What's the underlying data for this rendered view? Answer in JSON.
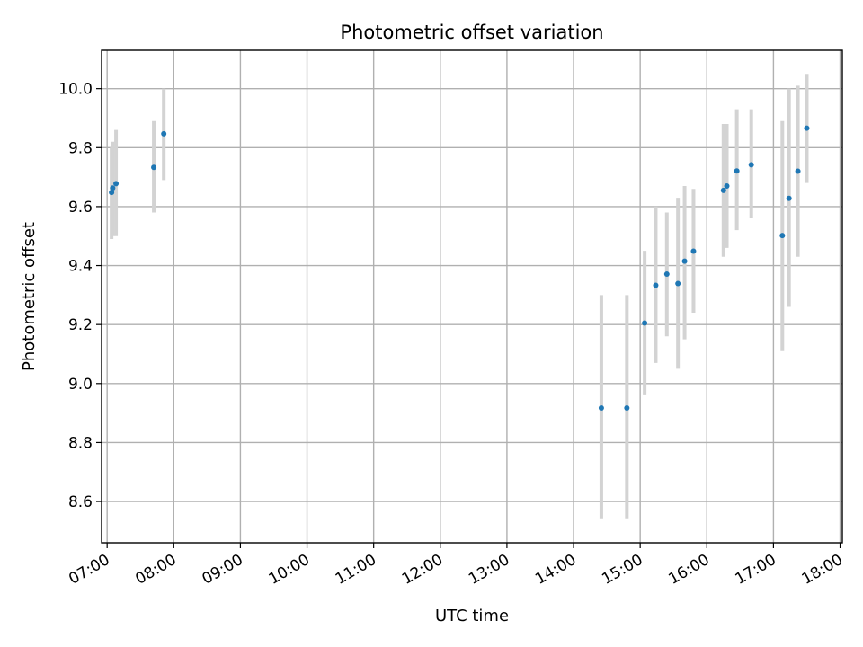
{
  "chart_data": {
    "type": "scatter",
    "title": "Photometric offset variation",
    "xlabel": "UTC time",
    "ylabel": "Photometric offset",
    "x_is_time": true,
    "xlim": [
      "06:55",
      "18:02"
    ],
    "ylim": [
      8.46,
      10.13
    ],
    "grid": true,
    "x_ticks": [
      "07:00",
      "08:00",
      "09:00",
      "10:00",
      "11:00",
      "12:00",
      "13:00",
      "14:00",
      "15:00",
      "16:00",
      "17:00",
      "18:00"
    ],
    "y_ticks": [
      8.6,
      8.8,
      9.0,
      9.2,
      9.4,
      9.6,
      9.8,
      10.0
    ],
    "y_tick_labels": [
      "8.6",
      "8.8",
      "9.0",
      "9.2",
      "9.4",
      "9.6",
      "9.8",
      "10.0"
    ],
    "errorbar_color": "#d3d3d3",
    "point_color": "#1f77b4",
    "points": [
      {
        "x": "07:04",
        "y": 9.648,
        "lo": 9.49,
        "hi": 9.8
      },
      {
        "x": "07:05",
        "y": 9.663,
        "lo": 9.5,
        "hi": 9.82
      },
      {
        "x": "07:08",
        "y": 9.678,
        "lo": 9.5,
        "hi": 9.86
      },
      {
        "x": "07:42",
        "y": 9.733,
        "lo": 9.58,
        "hi": 9.89
      },
      {
        "x": "07:51",
        "y": 9.847,
        "lo": 9.69,
        "hi": 10.0
      },
      {
        "x": "14:25",
        "y": 8.917,
        "lo": 8.54,
        "hi": 9.3
      },
      {
        "x": "14:48",
        "y": 8.917,
        "lo": 8.54,
        "hi": 9.3
      },
      {
        "x": "15:04",
        "y": 9.205,
        "lo": 8.96,
        "hi": 9.45
      },
      {
        "x": "15:14",
        "y": 9.333,
        "lo": 9.07,
        "hi": 9.6
      },
      {
        "x": "15:24",
        "y": 9.371,
        "lo": 9.16,
        "hi": 9.58
      },
      {
        "x": "15:34",
        "y": 9.339,
        "lo": 9.05,
        "hi": 9.63
      },
      {
        "x": "15:40",
        "y": 9.415,
        "lo": 9.15,
        "hi": 9.67
      },
      {
        "x": "15:48",
        "y": 9.449,
        "lo": 9.24,
        "hi": 9.66
      },
      {
        "x": "16:15",
        "y": 9.655,
        "lo": 9.43,
        "hi": 9.88
      },
      {
        "x": "16:18",
        "y": 9.67,
        "lo": 9.46,
        "hi": 9.88
      },
      {
        "x": "16:27",
        "y": 9.721,
        "lo": 9.52,
        "hi": 9.93
      },
      {
        "x": "16:40",
        "y": 9.742,
        "lo": 9.56,
        "hi": 9.93
      },
      {
        "x": "17:08",
        "y": 9.502,
        "lo": 9.11,
        "hi": 9.89
      },
      {
        "x": "17:14",
        "y": 9.628,
        "lo": 9.26,
        "hi": 10.0
      },
      {
        "x": "17:22",
        "y": 9.72,
        "lo": 9.43,
        "hi": 10.01
      },
      {
        "x": "17:30",
        "y": 9.866,
        "lo": 9.68,
        "hi": 10.05
      }
    ]
  }
}
